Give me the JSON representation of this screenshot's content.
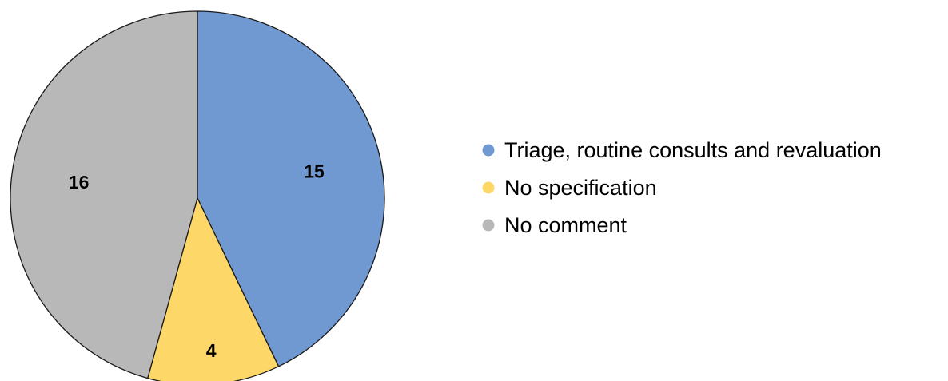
{
  "chart_data": {
    "type": "pie",
    "title": "",
    "slices": [
      {
        "label": "Triage, routine consults and revaluation",
        "value": 15,
        "color": "#7199D1"
      },
      {
        "label": "No specification",
        "value": 4,
        "color": "#FDD868"
      },
      {
        "label": "No comment",
        "value": 16,
        "color": "#B8B8B8"
      }
    ],
    "start": "12 o'clock",
    "direction": "clockwise",
    "data_labels": "value",
    "legend_position": "right"
  }
}
